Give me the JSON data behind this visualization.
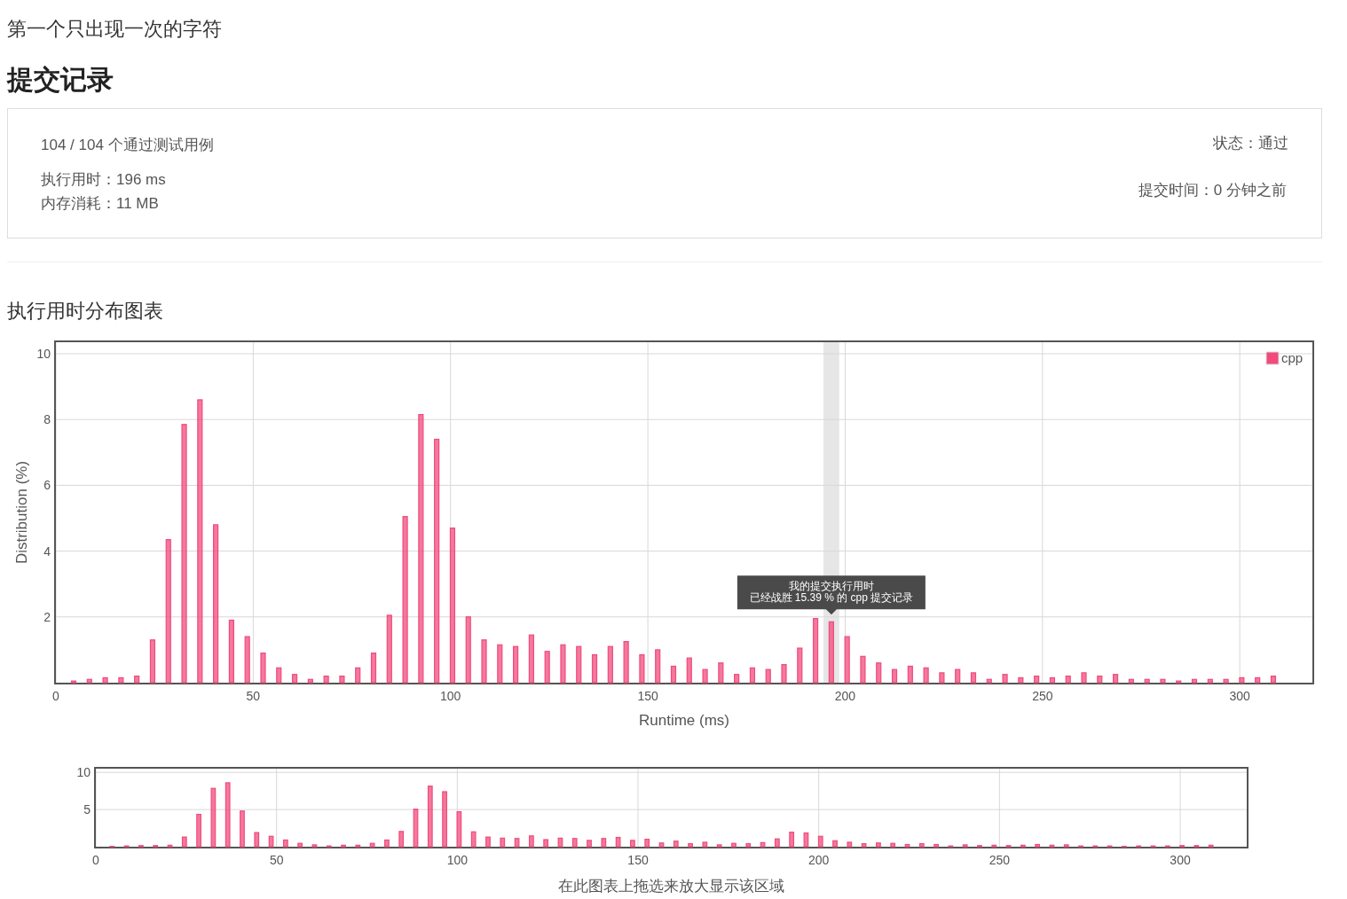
{
  "chart_data": [
    {
      "type": "bar",
      "title": "执行用时分布图表",
      "xlabel": "Runtime (ms)",
      "ylabel": "Distribution (%)",
      "x": [
        4.5,
        8.5,
        12.5,
        16.5,
        20.5,
        24.5,
        28.5,
        32.5,
        36.5,
        40.5,
        44.5,
        48.5,
        52.5,
        56.5,
        60.5,
        64.5,
        68.5,
        72.5,
        76.5,
        80.5,
        84.5,
        88.5,
        92.5,
        96.5,
        100.5,
        104.5,
        108.5,
        112.5,
        116.5,
        120.5,
        124.5,
        128.5,
        132.5,
        136.5,
        140.5,
        144.5,
        148.5,
        152.5,
        156.5,
        160.5,
        164.5,
        168.5,
        172.5,
        176.5,
        180.5,
        184.5,
        188.5,
        192.5,
        196.5,
        200.5,
        204.5,
        208.5,
        212.5,
        216.5,
        220.5,
        224.5,
        228.5,
        232.5,
        236.5,
        240.5,
        244.5,
        248.5,
        252.5,
        256.5,
        260.5,
        264.5,
        268.5,
        272.5,
        276.5,
        280.5,
        284.5,
        288.5,
        292.5,
        296.5,
        300.5,
        304.5,
        308.5
      ],
      "series": [
        {
          "name": "cpp",
          "color": "#f04b7c",
          "values": [
            0.05,
            0.1,
            0.15,
            0.15,
            0.2,
            1.3,
            4.35,
            7.85,
            8.6,
            4.8,
            1.9,
            1.4,
            0.9,
            0.45,
            0.25,
            0.1,
            0.2,
            0.2,
            0.45,
            0.9,
            2.05,
            5.05,
            8.15,
            7.4,
            4.7,
            2.0,
            1.3,
            1.15,
            1.1,
            1.45,
            0.95,
            1.15,
            1.1,
            0.85,
            1.1,
            1.25,
            0.85,
            1.0,
            0.5,
            0.75,
            0.4,
            0.6,
            0.25,
            0.45,
            0.4,
            0.55,
            1.05,
            1.95,
            1.85,
            1.4,
            0.8,
            0.6,
            0.4,
            0.5,
            0.45,
            0.3,
            0.4,
            0.3,
            0.1,
            0.25,
            0.15,
            0.2,
            0.15,
            0.2,
            0.3,
            0.2,
            0.25,
            0.1,
            0.1,
            0.1,
            0.05,
            0.1,
            0.1,
            0.1,
            0.15,
            0.15,
            0.2
          ]
        }
      ],
      "xlim": [
        0,
        318.4
      ],
      "ylim": [
        0,
        10.35
      ],
      "xticks": [
        0,
        50,
        100,
        150,
        200,
        250,
        300
      ],
      "yticks": [
        2,
        4,
        6,
        8,
        10
      ],
      "grid": true,
      "legend": "top right",
      "bands": [
        {
          "axis": "x",
          "from": 194.5,
          "to": 198.5,
          "color": "#e6e6e6"
        }
      ],
      "annotations": [
        {
          "text": "我的提交执行用时",
          "x": 196.5,
          "y": 1.85
        },
        {
          "text": "已经战胜 15.39 % 的 cpp 提交记录",
          "x": 196.5,
          "y": 1.85
        },
        "第一个只出现一次的字符",
        "提交记录",
        "104 / 104 个通过测试用例",
        "执行用时：196 ms",
        "内存消耗：11 MB",
        "状态：通过",
        "提交时间：0 分钟之前"
      ]
    },
    {
      "type": "bar",
      "xlabel": "在此图表上拖选来放大显示该区域",
      "x": [
        4.5,
        8.5,
        12.5,
        16.5,
        20.5,
        24.5,
        28.5,
        32.5,
        36.5,
        40.5,
        44.5,
        48.5,
        52.5,
        56.5,
        60.5,
        64.5,
        68.5,
        72.5,
        76.5,
        80.5,
        84.5,
        88.5,
        92.5,
        96.5,
        100.5,
        104.5,
        108.5,
        112.5,
        116.5,
        120.5,
        124.5,
        128.5,
        132.5,
        136.5,
        140.5,
        144.5,
        148.5,
        152.5,
        156.5,
        160.5,
        164.5,
        168.5,
        172.5,
        176.5,
        180.5,
        184.5,
        188.5,
        192.5,
        196.5,
        200.5,
        204.5,
        208.5,
        212.5,
        216.5,
        220.5,
        224.5,
        228.5,
        232.5,
        236.5,
        240.5,
        244.5,
        248.5,
        252.5,
        256.5,
        260.5,
        264.5,
        268.5,
        272.5,
        276.5,
        280.5,
        284.5,
        288.5,
        292.5,
        296.5,
        300.5,
        304.5,
        308.5
      ],
      "series": [
        {
          "color": "#f04b7c",
          "values": [
            0.05,
            0.1,
            0.15,
            0.15,
            0.2,
            1.3,
            4.35,
            7.85,
            8.6,
            4.8,
            1.9,
            1.4,
            0.9,
            0.45,
            0.25,
            0.1,
            0.2,
            0.2,
            0.45,
            0.9,
            2.05,
            5.05,
            8.15,
            7.4,
            4.7,
            2.0,
            1.3,
            1.15,
            1.1,
            1.45,
            0.95,
            1.15,
            1.1,
            0.85,
            1.1,
            1.25,
            0.85,
            1.0,
            0.5,
            0.75,
            0.4,
            0.6,
            0.25,
            0.45,
            0.4,
            0.55,
            1.05,
            1.95,
            1.85,
            1.4,
            0.8,
            0.6,
            0.4,
            0.5,
            0.45,
            0.3,
            0.4,
            0.3,
            0.1,
            0.25,
            0.15,
            0.2,
            0.15,
            0.2,
            0.3,
            0.2,
            0.25,
            0.1,
            0.1,
            0.1,
            0.05,
            0.1,
            0.1,
            0.1,
            0.15,
            0.15,
            0.2
          ]
        }
      ],
      "xlim": [
        0,
        318.4
      ],
      "ylim": [
        0,
        10.5
      ],
      "xticks": [
        0,
        50,
        100,
        150,
        200,
        250,
        300
      ],
      "yticks": [
        5,
        10
      ],
      "grid": true
    }
  ]
}
